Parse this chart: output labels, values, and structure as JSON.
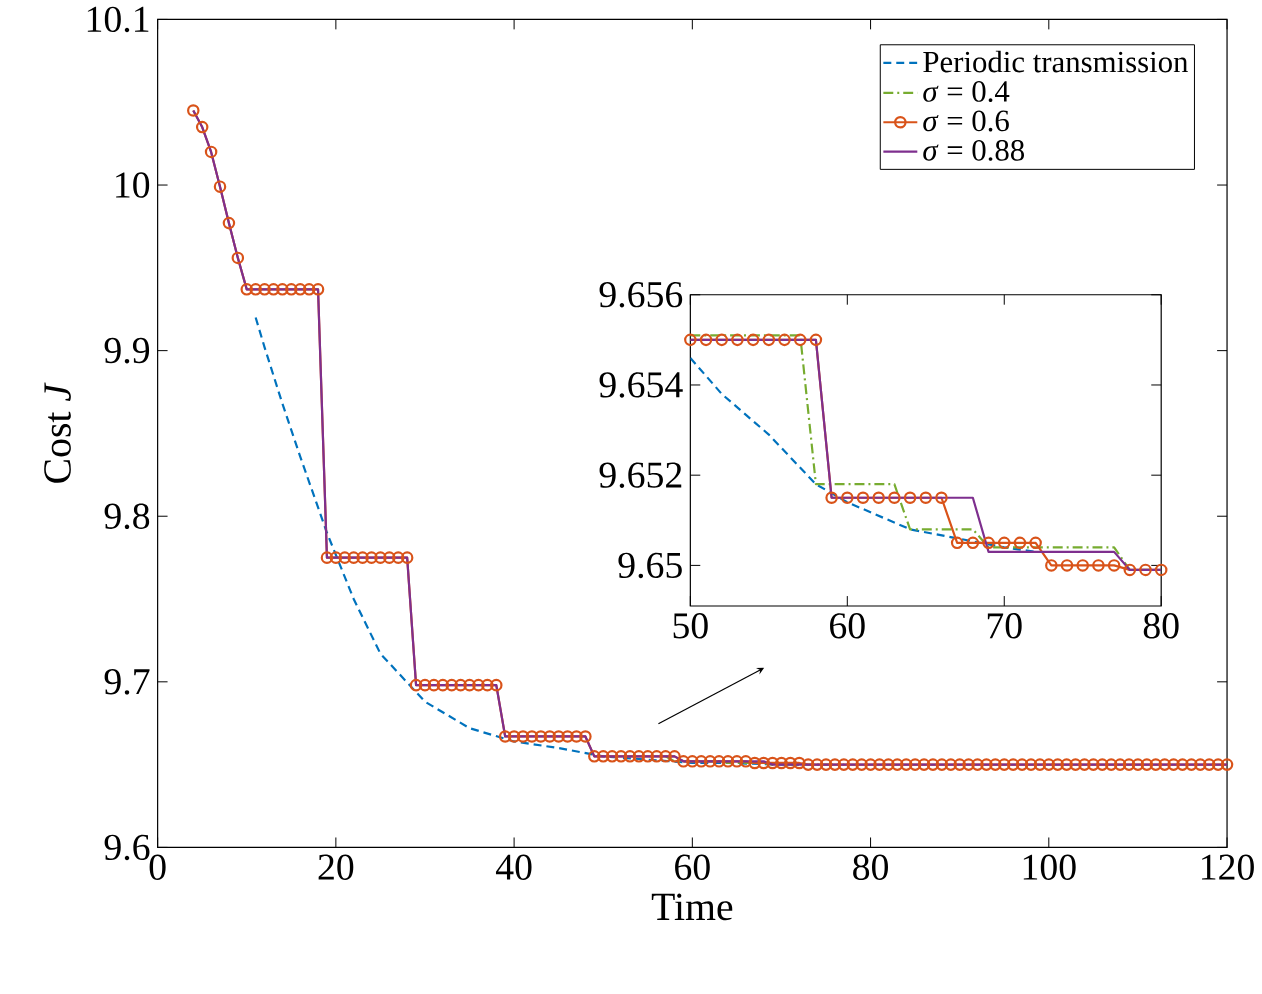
{
  "chart_data": [
    {
      "type": "line",
      "xlabel": "Time",
      "ylabel": "Cost *J*",
      "xlim": [
        0,
        120
      ],
      "ylim": [
        9.6,
        10.1
      ],
      "xticks": [
        0,
        20,
        40,
        60,
        80,
        100,
        120
      ],
      "yticks": [
        9.6,
        9.7,
        9.8,
        9.9,
        10,
        10.1
      ],
      "legend": "top right",
      "series": [
        {
          "name": "Periodic transmission",
          "color": "#0072bd",
          "line_style": "dashed",
          "marker": "none",
          "x": [
            11,
            12,
            14,
            16,
            19,
            22,
            25,
            30,
            35,
            40,
            45,
            50,
            55,
            60,
            64,
            70,
            72
          ],
          "values": [
            9.92,
            9.902,
            9.868,
            9.836,
            9.79,
            9.75,
            9.717,
            9.688,
            9.672,
            9.664,
            9.66,
            9.655,
            9.653,
            9.651,
            9.651,
            9.65,
            9.65
          ]
        },
        {
          "name": "*σ* = 0.4",
          "color": "#77ac30",
          "line_style": "dashdot",
          "marker": "none",
          "x": [
            57,
            58,
            63,
            64,
            68,
            69,
            77
          ],
          "values": [
            9.655,
            9.652,
            9.652,
            9.651,
            9.651,
            9.65,
            9.65
          ]
        },
        {
          "name": "*σ* = 0.6",
          "color": "#d95319",
          "line_style": "solid",
          "marker": "circle",
          "x": [
            4,
            5,
            6,
            7,
            8,
            9,
            10,
            11,
            12,
            13,
            14,
            15,
            16,
            17,
            18,
            19,
            20,
            21,
            22,
            23,
            24,
            25,
            26,
            27,
            28,
            29,
            30,
            31,
            32,
            33,
            34,
            35,
            36,
            37,
            38,
            39,
            40,
            41,
            42,
            43,
            44,
            45,
            46,
            47,
            48,
            49,
            50,
            51,
            52,
            53,
            54,
            55,
            56,
            57,
            58,
            59,
            60,
            61,
            62,
            63,
            64,
            65,
            66,
            67,
            68,
            69,
            70,
            71,
            72,
            73,
            74,
            75,
            76,
            77,
            78,
            79,
            80,
            81,
            82,
            83,
            84,
            85,
            86,
            87,
            88,
            89,
            90,
            91,
            92,
            93,
            94,
            95,
            96,
            97,
            98,
            99,
            100,
            101,
            102,
            103,
            104,
            105,
            106,
            107,
            108,
            109,
            110,
            111,
            112,
            113,
            114,
            115,
            116,
            117,
            118,
            119,
            120
          ],
          "values": [
            10.045,
            10.035,
            10.02,
            9.999,
            9.977,
            9.956,
            9.937,
            9.937,
            9.937,
            9.937,
            9.937,
            9.937,
            9.937,
            9.937,
            9.937,
            9.775,
            9.775,
            9.775,
            9.775,
            9.775,
            9.775,
            9.775,
            9.775,
            9.775,
            9.775,
            9.698,
            9.698,
            9.698,
            9.698,
            9.698,
            9.698,
            9.698,
            9.698,
            9.698,
            9.698,
            9.667,
            9.667,
            9.667,
            9.667,
            9.667,
            9.667,
            9.667,
            9.667,
            9.667,
            9.667,
            9.655,
            9.655,
            9.655,
            9.655,
            9.655,
            9.655,
            9.655,
            9.655,
            9.655,
            9.655,
            9.652,
            9.652,
            9.652,
            9.652,
            9.652,
            9.652,
            9.652,
            9.652,
            9.651,
            9.651,
            9.651,
            9.651,
            9.651,
            9.651,
            9.65,
            9.65,
            9.65,
            9.65,
            9.65,
            9.65,
            9.65,
            9.65,
            9.65,
            9.65,
            9.65,
            9.65,
            9.65,
            9.65,
            9.65,
            9.65,
            9.65,
            9.65,
            9.65,
            9.65,
            9.65,
            9.65,
            9.65,
            9.65,
            9.65,
            9.65,
            9.65,
            9.65,
            9.65,
            9.65,
            9.65,
            9.65,
            9.65,
            9.65,
            9.65,
            9.65,
            9.65,
            9.65,
            9.65,
            9.65,
            9.65,
            9.65,
            9.65,
            9.65,
            9.65,
            9.65,
            9.65,
            9.65
          ]
        },
        {
          "name": "*σ* = 0.88",
          "color": "#7e2f8e",
          "line_style": "solid",
          "marker": "none",
          "x": [
            4,
            5,
            6,
            7,
            8,
            9,
            10,
            18,
            19,
            28,
            29,
            38,
            39,
            48,
            49,
            58,
            59,
            68,
            69,
            77,
            78,
            120
          ],
          "values": [
            10.045,
            10.035,
            10.02,
            9.999,
            9.977,
            9.956,
            9.937,
            9.937,
            9.775,
            9.775,
            9.698,
            9.698,
            9.667,
            9.667,
            9.655,
            9.655,
            9.652,
            9.652,
            9.65,
            9.65,
            9.65,
            9.65
          ]
        }
      ]
    },
    {
      "type": "line",
      "xlim": [
        50,
        80
      ],
      "ylim": [
        9.6491,
        9.656
      ],
      "xticks": [
        50,
        60,
        70,
        80
      ],
      "yticks": [
        9.65,
        9.652,
        9.654,
        9.656
      ],
      "series": [
        {
          "color": "#0072bd",
          "line_style": "dashed",
          "marker": "none",
          "x": [
            50,
            52,
            55,
            58,
            60,
            64,
            70,
            72
          ],
          "values": [
            9.6546,
            9.6538,
            9.6529,
            9.6518,
            9.6514,
            9.6508,
            9.6504,
            9.6503
          ]
        },
        {
          "color": "#77ac30",
          "line_style": "dashdot",
          "marker": "none",
          "x": [
            50,
            57,
            58,
            63,
            64,
            68,
            69,
            77,
            78,
            80
          ],
          "values": [
            9.6551,
            9.6551,
            9.6518,
            9.6518,
            9.6508,
            9.6508,
            9.6504,
            9.6504,
            9.6499,
            9.6499
          ]
        },
        {
          "color": "#d95319",
          "line_style": "solid",
          "marker": "circle",
          "x": [
            50,
            51,
            52,
            53,
            54,
            55,
            56,
            57,
            58,
            59,
            60,
            61,
            62,
            63,
            64,
            65,
            66,
            67,
            68,
            69,
            70,
            71,
            72,
            73,
            74,
            75,
            76,
            77,
            78,
            79,
            80
          ],
          "values": [
            9.655,
            9.655,
            9.655,
            9.655,
            9.655,
            9.655,
            9.655,
            9.655,
            9.655,
            9.6515,
            9.6515,
            9.6515,
            9.6515,
            9.6515,
            9.6515,
            9.6515,
            9.6515,
            9.6505,
            9.6505,
            9.6505,
            9.6505,
            9.6505,
            9.6505,
            9.65,
            9.65,
            9.65,
            9.65,
            9.65,
            9.6499,
            9.6499,
            9.6499
          ]
        },
        {
          "color": "#7e2f8e",
          "line_style": "solid",
          "marker": "none",
          "x": [
            50,
            58,
            59,
            68,
            69,
            77,
            78,
            80
          ],
          "values": [
            9.655,
            9.655,
            9.6515,
            9.6515,
            9.6503,
            9.6503,
            9.6499,
            9.6499
          ]
        }
      ]
    }
  ]
}
